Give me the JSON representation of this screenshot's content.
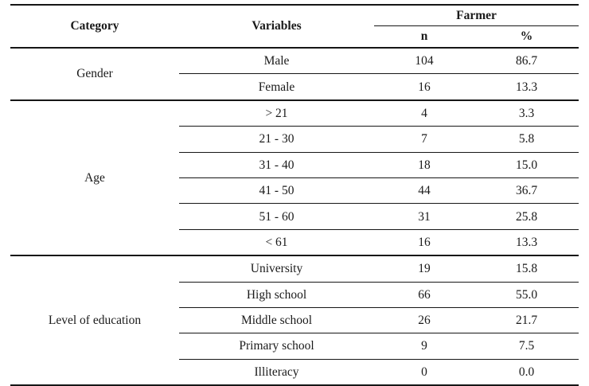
{
  "table": {
    "headers": {
      "category": "Category",
      "variables": "Variables",
      "group": "Farmer",
      "n": "n",
      "pct": "%"
    },
    "sections": [
      {
        "category": "Gender",
        "rows": [
          {
            "variable": "Male",
            "n": "104",
            "pct": "86.7"
          },
          {
            "variable": "Female",
            "n": "16",
            "pct": "13.3"
          }
        ]
      },
      {
        "category": "Age",
        "rows": [
          {
            "variable": "> 21",
            "n": "4",
            "pct": "3.3"
          },
          {
            "variable": "21 - 30",
            "n": "7",
            "pct": "5.8"
          },
          {
            "variable": "31 - 40",
            "n": "18",
            "pct": "15.0"
          },
          {
            "variable": "41 - 50",
            "n": "44",
            "pct": "36.7"
          },
          {
            "variable": "51 - 60",
            "n": "31",
            "pct": "25.8"
          },
          {
            "variable": "< 61",
            "n": "16",
            "pct": "13.3"
          }
        ]
      },
      {
        "category": "Level of education",
        "rows": [
          {
            "variable": "University",
            "n": "19",
            "pct": "15.8"
          },
          {
            "variable": "High school",
            "n": "66",
            "pct": "55.0"
          },
          {
            "variable": "Middle school",
            "n": "26",
            "pct": "21.7"
          },
          {
            "variable": "Primary school",
            "n": "9",
            "pct": "7.5"
          },
          {
            "variable": "Illiteracy",
            "n": "0",
            "pct": "0.0"
          }
        ]
      }
    ]
  },
  "colors": {
    "text": "#1a1a1a",
    "rule": "#161616",
    "background": "#ffffff"
  },
  "chart_data": {
    "type": "table",
    "title": "",
    "columns": [
      "Category",
      "Variables",
      "Farmer n",
      "Farmer %"
    ],
    "rows": [
      [
        "Gender",
        "Male",
        104,
        86.7
      ],
      [
        "Gender",
        "Female",
        16,
        13.3
      ],
      [
        "Age",
        "> 21",
        4,
        3.3
      ],
      [
        "Age",
        "21 - 30",
        7,
        5.8
      ],
      [
        "Age",
        "31 - 40",
        18,
        15.0
      ],
      [
        "Age",
        "41 - 50",
        44,
        36.7
      ],
      [
        "Age",
        "51 - 60",
        31,
        25.8
      ],
      [
        "Age",
        "< 61",
        16,
        13.3
      ],
      [
        "Level of education",
        "University",
        19,
        15.8
      ],
      [
        "Level of education",
        "High school",
        66,
        55.0
      ],
      [
        "Level of education",
        "Middle school",
        26,
        21.7
      ],
      [
        "Level of education",
        "Primary school",
        9,
        7.5
      ],
      [
        "Level of education",
        "Illiteracy",
        0,
        0.0
      ]
    ]
  }
}
